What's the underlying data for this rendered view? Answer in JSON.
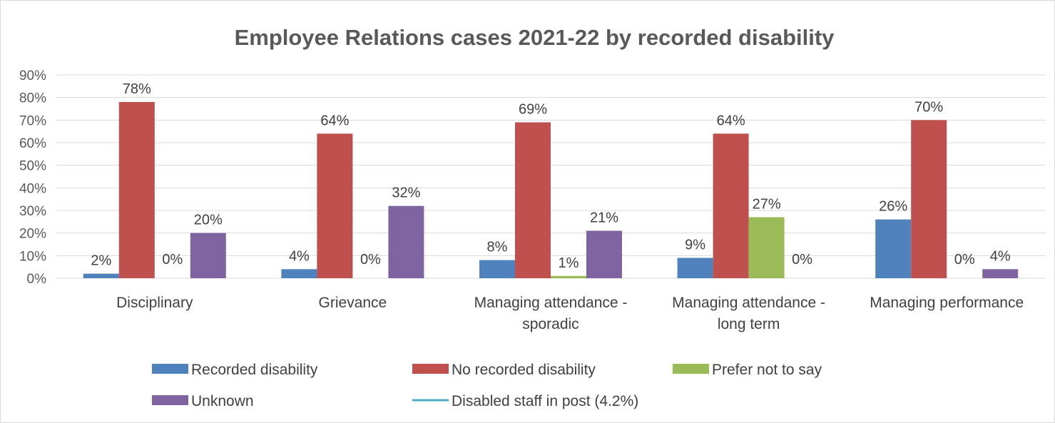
{
  "chart_data": {
    "type": "bar",
    "title": "Employee Relations cases 2021-22 by recorded disability",
    "categories": [
      [
        "Disciplinary"
      ],
      [
        "Grievance"
      ],
      [
        "Managing attendance -",
        "sporadic"
      ],
      [
        "Managing attendance -",
        "long term"
      ],
      [
        "Managing performance"
      ]
    ],
    "series": [
      {
        "name": "Recorded disability",
        "color": "#4f81bd",
        "values": [
          2,
          4,
          8,
          9,
          26
        ],
        "labels": [
          "2%",
          "4%",
          "8%",
          "9%",
          "26%"
        ]
      },
      {
        "name": "No recorded disability",
        "color": "#c0504d",
        "values": [
          78,
          64,
          69,
          64,
          70
        ],
        "labels": [
          "78%",
          "64%",
          "69%",
          "64%",
          "70%"
        ]
      },
      {
        "name": "Prefer not to say",
        "color": "#9bbb59",
        "values": [
          0,
          0,
          1,
          27,
          0
        ],
        "labels": [
          "0%",
          "0%",
          "1%",
          "27%",
          "0%"
        ]
      },
      {
        "name": "Unknown",
        "color": "#8064a2",
        "values": [
          20,
          32,
          21,
          0,
          4
        ],
        "labels": [
          "20%",
          "32%",
          "21%",
          "0%",
          "4%"
        ]
      }
    ],
    "reference_line": {
      "name": "Disabled staff in post (4.2%)",
      "color": "#4bacc6",
      "value": 4.2
    },
    "y_ticks": [
      "0%",
      "10%",
      "20%",
      "30%",
      "40%",
      "50%",
      "60%",
      "70%",
      "80%",
      "90%"
    ],
    "ylim": [
      0,
      90
    ],
    "grid": true,
    "legend_position": "bottom"
  }
}
